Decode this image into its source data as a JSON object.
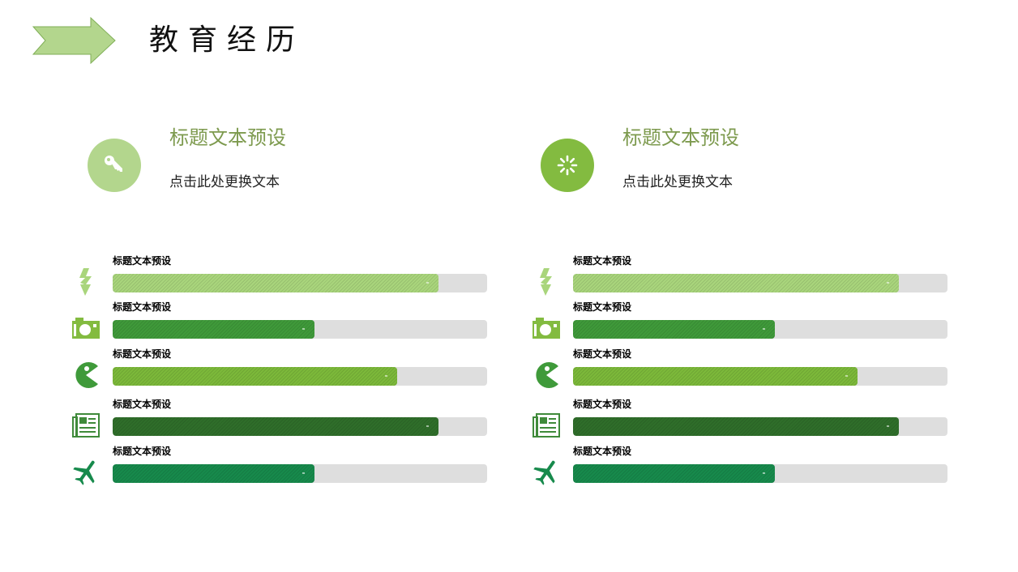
{
  "header": {
    "title": "教育经历",
    "arrow_icon": "arrow-right-icon",
    "arrow_color": "#b3d68d",
    "arrow_stroke": "#7fae56"
  },
  "features": [
    {
      "icon": "key-icon",
      "circle_color": "#b3d68d",
      "title": "标题文本预设",
      "description": "点击此处更换文本"
    },
    {
      "icon": "loading-spinner-icon",
      "circle_color": "#83bb40",
      "title": "标题文本预设",
      "description": "点击此处更换文本"
    }
  ],
  "skill_groups": [
    {
      "skills": [
        {
          "icon": "lightning-icon",
          "label": "标题文本预设",
          "percent": 87,
          "color": "#a9d57c",
          "icon_color": "#a9d57c"
        },
        {
          "icon": "camera-icon",
          "label": "标题文本预设",
          "percent": 54,
          "color": "#3f9a3a",
          "icon_color": "#83bb40"
        },
        {
          "icon": "pacman-icon",
          "label": "标题文本预设",
          "percent": 76,
          "color": "#7cb93a",
          "icon_color": "#3f9a3a"
        },
        {
          "icon": "newspaper-icon",
          "label": "标题文本预设",
          "percent": 87,
          "color": "#2f6e2a",
          "icon_color": "#3f8a3a"
        },
        {
          "icon": "airplane-icon",
          "label": "标题文本预设",
          "percent": 54,
          "color": "#178a4c",
          "icon_color": "#178a4c"
        }
      ]
    },
    {
      "skills": [
        {
          "icon": "lightning-icon",
          "label": "标题文本预设",
          "percent": 87,
          "color": "#a9d57c",
          "icon_color": "#a9d57c"
        },
        {
          "icon": "camera-icon",
          "label": "标题文本预设",
          "percent": 54,
          "color": "#3f9a3a",
          "icon_color": "#83bb40"
        },
        {
          "icon": "pacman-icon",
          "label": "标题文本预设",
          "percent": 76,
          "color": "#7cb93a",
          "icon_color": "#3f9a3a"
        },
        {
          "icon": "newspaper-icon",
          "label": "标题文本预设",
          "percent": 87,
          "color": "#2f6e2a",
          "icon_color": "#3f8a3a"
        },
        {
          "icon": "airplane-icon",
          "label": "标题文本预设",
          "percent": 54,
          "color": "#178a4c",
          "icon_color": "#178a4c"
        }
      ]
    }
  ],
  "colors": {
    "title_green": "#7d9a4e",
    "track_gray": "#dedede"
  }
}
